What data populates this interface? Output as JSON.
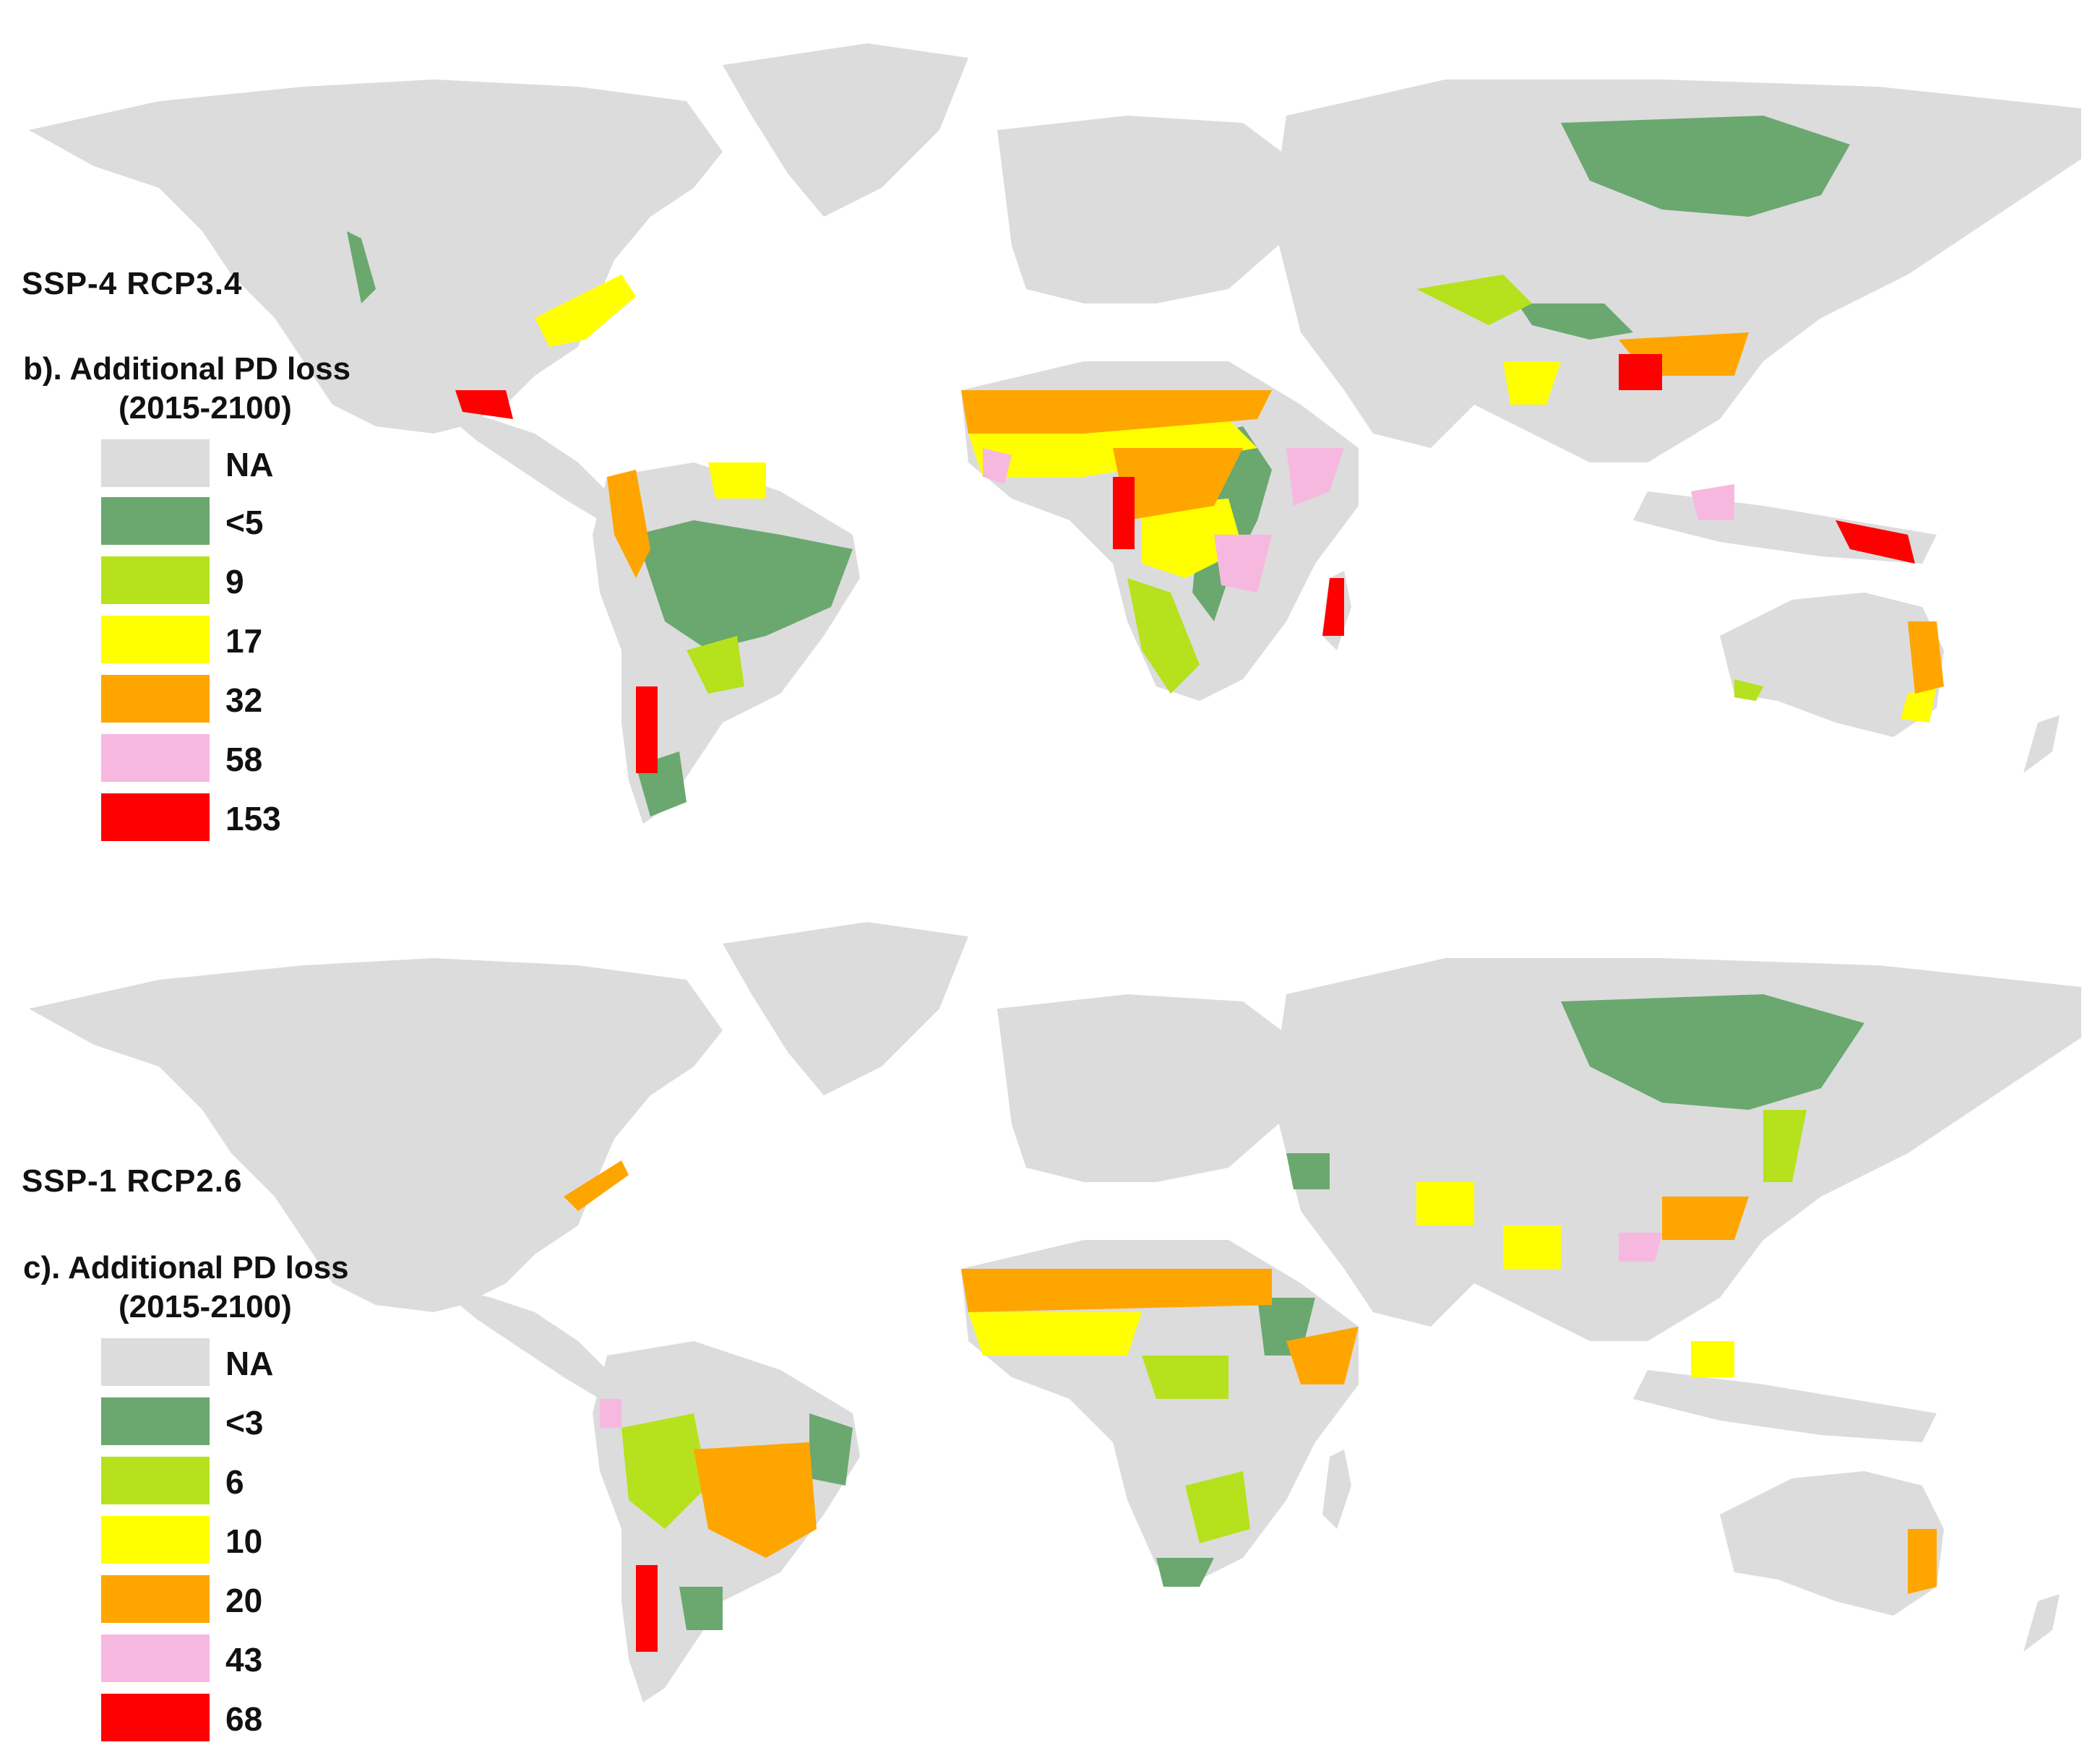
{
  "colors": {
    "land_na": "#dcdcdc",
    "ocean": "#ffffff",
    "class_1": "#6aa86f",
    "class_2": "#b5e21c",
    "class_3": "#ffff00",
    "class_4": "#ffa500",
    "class_5": "#f7b8e0",
    "class_6": "#ff0000"
  },
  "panels": [
    {
      "scenario": "SSP-4 RCP3.4",
      "legend_title_line1": "b). Additional PD loss",
      "legend_title_line2": "(2015-2100)",
      "legend": [
        {
          "label": "NA",
          "color": "#dcdcdc"
        },
        {
          "label": "<5",
          "color": "#6aa86f"
        },
        {
          "label": "9",
          "color": "#b5e21c"
        },
        {
          "label": "17",
          "color": "#ffff00"
        },
        {
          "label": "32",
          "color": "#ffa500"
        },
        {
          "label": "58",
          "color": "#f7b8e0"
        },
        {
          "label": "153",
          "color": "#ff0000"
        }
      ]
    },
    {
      "scenario": "SSP-1 RCP2.6",
      "legend_title_line1": "c). Additional PD loss",
      "legend_title_line2": "(2015-2100)",
      "legend": [
        {
          "label": "NA",
          "color": "#dcdcdc"
        },
        {
          "label": "<3",
          "color": "#6aa86f"
        },
        {
          "label": "6",
          "color": "#b5e21c"
        },
        {
          "label": "10",
          "color": "#ffff00"
        },
        {
          "label": "20",
          "color": "#ffa500"
        },
        {
          "label": "43",
          "color": "#f7b8e0"
        },
        {
          "label": "68",
          "color": "#ff0000"
        }
      ]
    }
  ]
}
